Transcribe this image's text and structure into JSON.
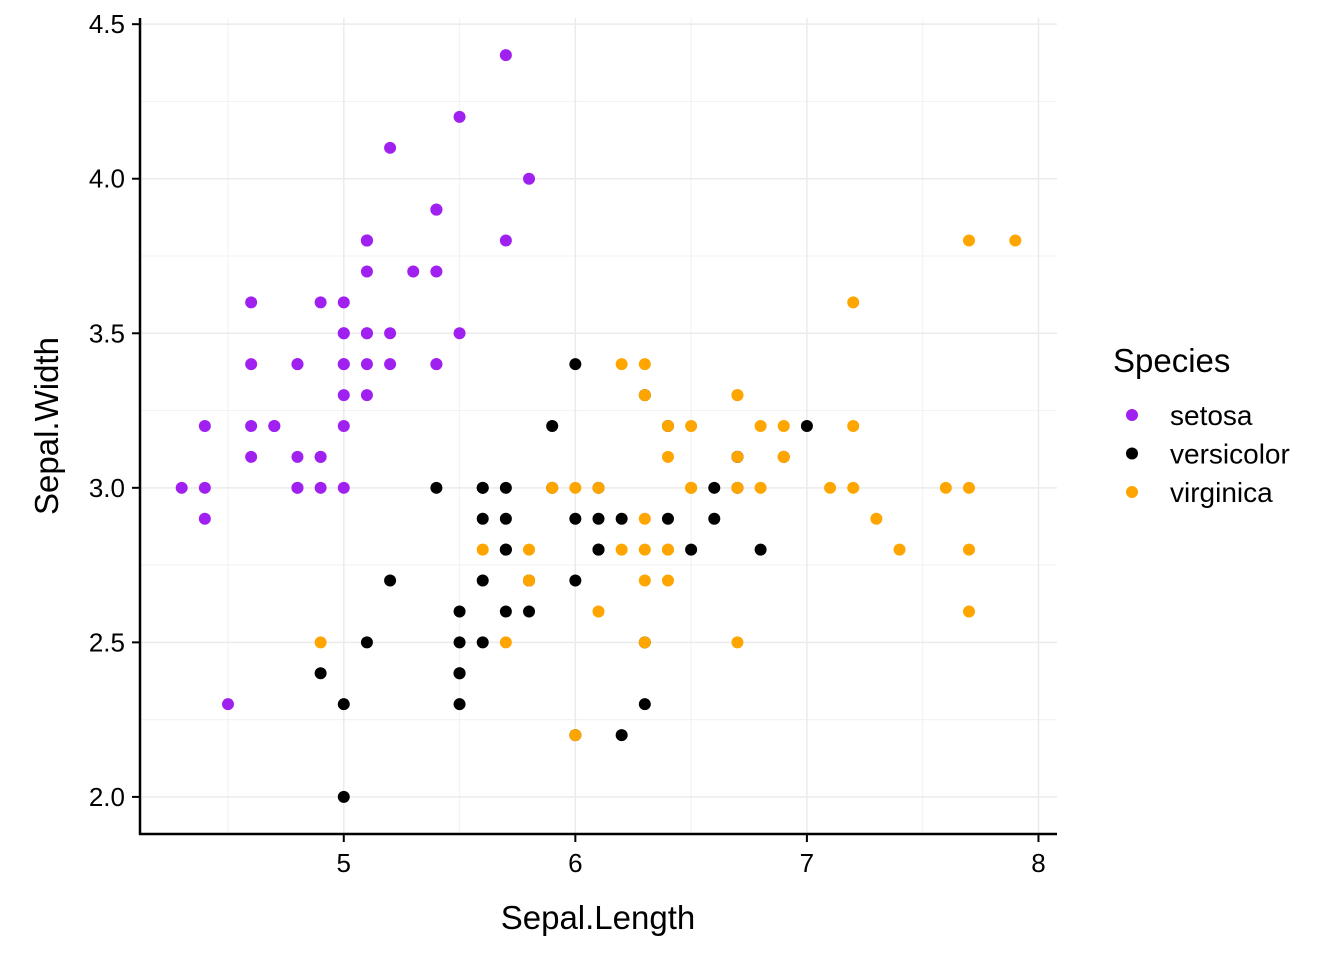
{
  "chart_data": {
    "type": "scatter",
    "title": "",
    "xlabel": "Sepal.Length",
    "ylabel": "Sepal.Width",
    "xlim": [
      4.12,
      8.08
    ],
    "ylim": [
      1.88,
      4.52
    ],
    "xticks": [
      5,
      6,
      7,
      8
    ],
    "xtick_labels": [
      "5",
      "6",
      "7",
      "8"
    ],
    "yticks": [
      2.0,
      2.5,
      3.0,
      3.5,
      4.0,
      4.5
    ],
    "ytick_labels": [
      "2.0",
      "2.5",
      "3.0",
      "3.5",
      "4.0",
      "4.5"
    ],
    "grid": true,
    "legend": {
      "title": "Species",
      "placement": "right"
    },
    "series": [
      {
        "name": "setosa",
        "color": "#A020F0",
        "x": [
          5.1,
          4.9,
          4.7,
          4.6,
          5.0,
          5.4,
          4.6,
          5.0,
          4.4,
          4.9,
          5.4,
          4.8,
          4.8,
          4.3,
          5.8,
          5.7,
          5.4,
          5.1,
          5.7,
          5.1,
          5.4,
          5.1,
          4.6,
          5.1,
          4.8,
          5.0,
          5.0,
          5.2,
          5.2,
          4.7,
          4.8,
          5.4,
          5.2,
          5.5,
          4.9,
          5.0,
          5.5,
          4.9,
          4.4,
          5.1,
          5.0,
          4.5,
          4.4,
          5.0,
          5.1,
          4.8,
          5.1,
          4.6,
          5.3,
          5.0
        ],
        "y": [
          3.5,
          3.0,
          3.2,
          3.1,
          3.6,
          3.9,
          3.4,
          3.4,
          2.9,
          3.1,
          3.7,
          3.4,
          3.0,
          3.0,
          4.0,
          4.4,
          3.9,
          3.5,
          3.8,
          3.8,
          3.4,
          3.7,
          3.6,
          3.3,
          3.4,
          3.0,
          3.4,
          3.5,
          3.4,
          3.2,
          3.1,
          3.4,
          4.1,
          4.2,
          3.1,
          3.2,
          3.5,
          3.6,
          3.0,
          3.4,
          3.5,
          2.3,
          3.2,
          3.5,
          3.8,
          3.0,
          3.8,
          3.2,
          3.7,
          3.3
        ]
      },
      {
        "name": "versicolor",
        "color": "#000000",
        "x": [
          7.0,
          6.4,
          6.9,
          5.5,
          6.5,
          5.7,
          6.3,
          4.9,
          6.6,
          5.2,
          5.0,
          5.9,
          6.0,
          6.1,
          5.6,
          6.7,
          5.6,
          5.8,
          6.2,
          5.6,
          5.9,
          6.1,
          6.3,
          6.1,
          6.4,
          6.6,
          6.8,
          6.7,
          6.0,
          5.7,
          5.5,
          5.5,
          5.8,
          6.0,
          5.4,
          6.0,
          6.7,
          6.3,
          5.6,
          5.5,
          5.5,
          6.1,
          5.8,
          5.0,
          5.6,
          5.7,
          5.7,
          6.2,
          5.1,
          5.7
        ],
        "y": [
          3.2,
          3.2,
          3.1,
          2.3,
          2.8,
          2.8,
          3.3,
          2.4,
          2.9,
          2.7,
          2.0,
          3.0,
          2.2,
          2.9,
          2.9,
          3.1,
          3.0,
          2.7,
          2.2,
          2.5,
          3.2,
          2.8,
          2.5,
          2.8,
          2.9,
          3.0,
          2.8,
          3.0,
          2.9,
          2.6,
          2.4,
          2.4,
          2.7,
          2.7,
          3.0,
          3.4,
          3.1,
          2.3,
          3.0,
          2.5,
          2.6,
          3.0,
          2.6,
          2.3,
          2.7,
          3.0,
          2.9,
          2.9,
          2.5,
          2.8
        ]
      },
      {
        "name": "virginica",
        "color": "#FFA500",
        "x": [
          6.3,
          5.8,
          7.1,
          6.3,
          6.5,
          7.6,
          4.9,
          7.3,
          6.7,
          7.2,
          6.5,
          6.4,
          6.8,
          5.7,
          5.8,
          6.4,
          6.5,
          7.7,
          7.7,
          6.0,
          6.9,
          5.6,
          7.7,
          6.3,
          6.7,
          7.2,
          6.2,
          6.1,
          6.4,
          7.2,
          7.4,
          7.9,
          6.4,
          6.3,
          6.1,
          7.7,
          6.3,
          6.4,
          6.0,
          6.9,
          6.7,
          6.9,
          5.8,
          6.8,
          6.7,
          6.7,
          6.3,
          6.5,
          6.2,
          5.9
        ],
        "y": [
          3.3,
          2.7,
          3.0,
          2.9,
          3.0,
          3.0,
          2.5,
          2.9,
          2.5,
          3.6,
          3.2,
          2.7,
          3.0,
          2.5,
          2.8,
          3.2,
          3.0,
          3.8,
          2.6,
          2.2,
          3.2,
          2.8,
          2.8,
          2.7,
          3.3,
          3.2,
          2.8,
          3.0,
          2.8,
          3.0,
          2.8,
          3.8,
          2.8,
          2.8,
          2.6,
          3.0,
          3.4,
          3.1,
          3.0,
          3.1,
          3.1,
          3.1,
          2.7,
          3.2,
          3.3,
          3.0,
          2.5,
          3.0,
          3.4,
          3.0
        ]
      }
    ]
  }
}
